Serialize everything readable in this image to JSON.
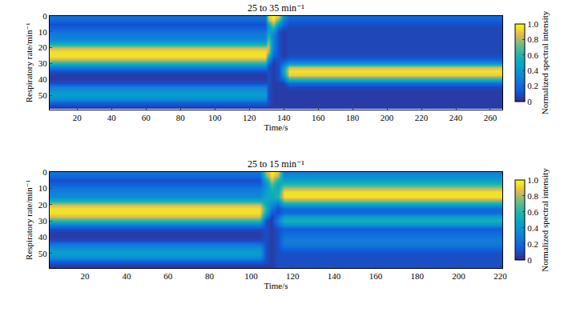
{
  "chart_data": [
    {
      "type": "heatmap",
      "title": "25 to 35 min⁻¹",
      "xlabel": "Time/s",
      "ylabel": "Respiratory rate/min⁻¹",
      "x": [
        4,
        129,
        131,
        134,
        137,
        140,
        143,
        267
      ],
      "y": [
        0,
        2.5,
        5,
        7.5,
        10,
        12.5,
        15,
        17.5,
        20,
        22.5,
        25,
        27.5,
        30,
        32.5,
        35,
        37.5,
        40,
        42.5,
        45,
        47.5,
        50,
        52.5,
        55,
        57.5
      ],
      "z": [
        [
          0.25,
          0.2,
          0.1,
          0.15,
          0.25,
          0.3,
          0.35,
          0.55,
          0.85,
          0.95,
          0.95,
          0.85,
          0.6,
          0.3,
          0.1,
          0.05,
          0.05,
          0.1,
          0.3,
          0.4,
          0.45,
          0.35,
          0.15,
          0.05
        ],
        [
          0.25,
          0.2,
          0.1,
          0.15,
          0.25,
          0.3,
          0.35,
          0.55,
          0.85,
          0.95,
          0.95,
          0.85,
          0.6,
          0.3,
          0.1,
          0.05,
          0.05,
          0.1,
          0.3,
          0.4,
          0.45,
          0.35,
          0.15,
          0.05
        ],
        [
          0.9,
          0.8,
          0.5,
          0.4,
          0.5,
          0.6,
          0.7,
          0.8,
          0.85,
          0.8,
          0.6,
          0.4,
          0.2,
          0.1,
          0.1,
          0.1,
          0.1,
          0.1,
          0.1,
          0.1,
          0.1,
          0.1,
          0.1,
          0.05
        ],
        [
          1,
          0.95,
          0.8,
          0.6,
          0.4,
          0.3,
          0.3,
          0.3,
          0.3,
          0.25,
          0.2,
          0.1,
          0.05,
          0.05,
          0.05,
          0.05,
          0.05,
          0.05,
          0.05,
          0.05,
          0.05,
          0.05,
          0.05,
          0.05
        ],
        [
          0.9,
          0.7,
          0.4,
          0.2,
          0.1,
          0.1,
          0.1,
          0.1,
          0.1,
          0.1,
          0.1,
          0.1,
          0.1,
          0.1,
          0.1,
          0.1,
          0.1,
          0.05,
          0.05,
          0.05,
          0.05,
          0.05,
          0.05,
          0.05
        ],
        [
          0.4,
          0.3,
          0.2,
          0.1,
          0.05,
          0.05,
          0.05,
          0.05,
          0.05,
          0.05,
          0.05,
          0.1,
          0.2,
          0.4,
          0.5,
          0.4,
          0.2,
          0.05,
          0.05,
          0.05,
          0.05,
          0.05,
          0.05,
          0.05
        ],
        [
          0.2,
          0.15,
          0.1,
          0.08,
          0.08,
          0.08,
          0.08,
          0.08,
          0.08,
          0.08,
          0.1,
          0.15,
          0.4,
          0.85,
          0.95,
          0.9,
          0.6,
          0.2,
          0.08,
          0.05,
          0.05,
          0.05,
          0.05,
          0.05
        ],
        [
          0.2,
          0.15,
          0.1,
          0.08,
          0.08,
          0.08,
          0.08,
          0.08,
          0.08,
          0.08,
          0.1,
          0.15,
          0.4,
          0.85,
          0.95,
          0.9,
          0.6,
          0.2,
          0.08,
          0.05,
          0.05,
          0.05,
          0.05,
          0.05
        ]
      ],
      "xlim": [
        4,
        267
      ],
      "xticks": [
        20,
        40,
        60,
        80,
        100,
        120,
        140,
        160,
        180,
        200,
        220,
        240,
        260
      ],
      "ylim": [
        0,
        59
      ],
      "yticks": [
        0,
        10,
        20,
        30,
        40,
        50
      ],
      "colorbar_label": "Normalized spectral intensity",
      "zlim": [
        0,
        1
      ],
      "zticks": [
        0,
        0.2,
        0.4,
        0.6,
        0.8,
        {
          "value": 1,
          "label": "1.0"
        }
      ]
    },
    {
      "type": "heatmap",
      "title": "25 to 15 min⁻¹",
      "xlabel": "Time/s",
      "ylabel": "Respiratory rate/min⁻¹",
      "x": [
        3,
        104,
        107,
        110,
        113,
        116,
        221
      ],
      "y": [
        0,
        2.5,
        5,
        7.5,
        10,
        12.5,
        15,
        17.5,
        20,
        22.5,
        25,
        27.5,
        30,
        32.5,
        35,
        37.5,
        40,
        42.5,
        45,
        47.5,
        50,
        52.5,
        55,
        57.5
      ],
      "z": [
        [
          0.25,
          0.2,
          0.1,
          0.15,
          0.25,
          0.3,
          0.35,
          0.55,
          0.85,
          0.95,
          0.95,
          0.85,
          0.6,
          0.3,
          0.1,
          0.05,
          0.05,
          0.1,
          0.3,
          0.4,
          0.45,
          0.35,
          0.15,
          0.05
        ],
        [
          0.25,
          0.2,
          0.1,
          0.15,
          0.25,
          0.3,
          0.35,
          0.55,
          0.85,
          0.95,
          0.95,
          0.85,
          0.6,
          0.3,
          0.1,
          0.05,
          0.05,
          0.1,
          0.3,
          0.4,
          0.45,
          0.35,
          0.15,
          0.05
        ],
        [
          0.8,
          0.7,
          0.5,
          0.4,
          0.4,
          0.45,
          0.5,
          0.5,
          0.5,
          0.6,
          0.5,
          0.3,
          0.1,
          0.1,
          0.1,
          0.1,
          0.1,
          0.1,
          0.1,
          0.1,
          0.1,
          0.1,
          0.1,
          0.05
        ],
        [
          1,
          0.95,
          0.85,
          0.7,
          0.6,
          0.55,
          0.5,
          0.45,
          0.35,
          0.25,
          0.15,
          0.05,
          0.05,
          0.05,
          0.05,
          0.05,
          0.05,
          0.05,
          0.05,
          0.05,
          0.05,
          0.05,
          0.05,
          0.05
        ],
        [
          0.9,
          0.8,
          0.6,
          0.5,
          0.5,
          0.55,
          0.6,
          0.4,
          0.2,
          0.1,
          0.1,
          0.2,
          0.3,
          0.2,
          0.1,
          0.1,
          0.1,
          0.1,
          0.1,
          0.1,
          0.1,
          0.1,
          0.1,
          0.1
        ],
        [
          0.3,
          0.35,
          0.45,
          0.6,
          0.8,
          0.95,
          0.95,
          0.75,
          0.45,
          0.2,
          0.2,
          0.45,
          0.55,
          0.4,
          0.15,
          0.2,
          0.25,
          0.3,
          0.25,
          0.15,
          0.1,
          0.1,
          0.1,
          0.1
        ],
        [
          0.3,
          0.35,
          0.45,
          0.6,
          0.8,
          0.95,
          0.95,
          0.75,
          0.45,
          0.2,
          0.2,
          0.45,
          0.55,
          0.4,
          0.15,
          0.2,
          0.25,
          0.3,
          0.25,
          0.15,
          0.1,
          0.1,
          0.1,
          0.1
        ]
      ],
      "xlim": [
        3,
        221
      ],
      "xticks": [
        20,
        40,
        60,
        80,
        100,
        120,
        140,
        160,
        180,
        200,
        220
      ],
      "ylim": [
        0,
        59
      ],
      "yticks": [
        0,
        10,
        20,
        30,
        40,
        50
      ],
      "colorbar_label": "Normalized spectral intensity",
      "zlim": [
        0,
        1
      ],
      "zticks": [
        0,
        0.2,
        0.4,
        0.6,
        0.8,
        {
          "value": 1,
          "label": "1.0"
        }
      ]
    }
  ]
}
